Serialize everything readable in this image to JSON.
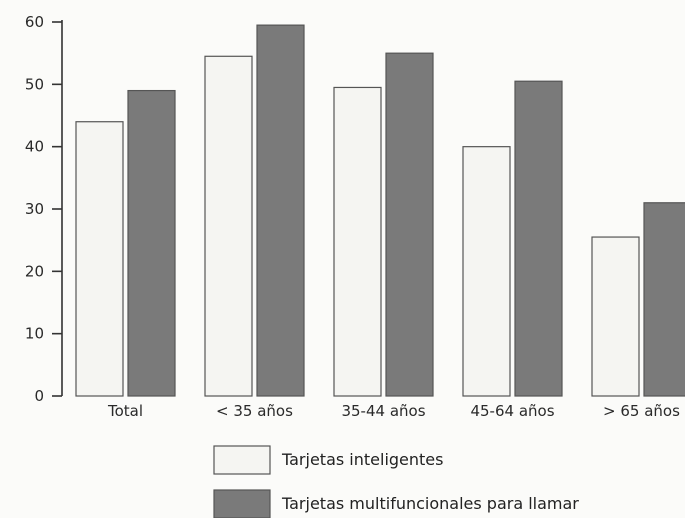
{
  "chart_data": {
    "type": "bar",
    "title": "",
    "xlabel": "",
    "ylabel": "",
    "ylim": [
      0,
      60
    ],
    "yticks": [
      0,
      10,
      20,
      30,
      40,
      50,
      60
    ],
    "grid": false,
    "legend_position": "bottom",
    "categories": [
      "Total",
      "< 35 años",
      "35-44 años",
      "45-64 años",
      "> 65 años"
    ],
    "series": [
      {
        "name": "Tarjetas inteligentes",
        "color": "#f5f5f2",
        "values": [
          44,
          54.5,
          49.5,
          40,
          25.5
        ]
      },
      {
        "name": "Tarjetas multifuncionales para llamar",
        "color": "#7a7a7a",
        "values": [
          49,
          59.5,
          55,
          50.5,
          31
        ]
      }
    ]
  }
}
